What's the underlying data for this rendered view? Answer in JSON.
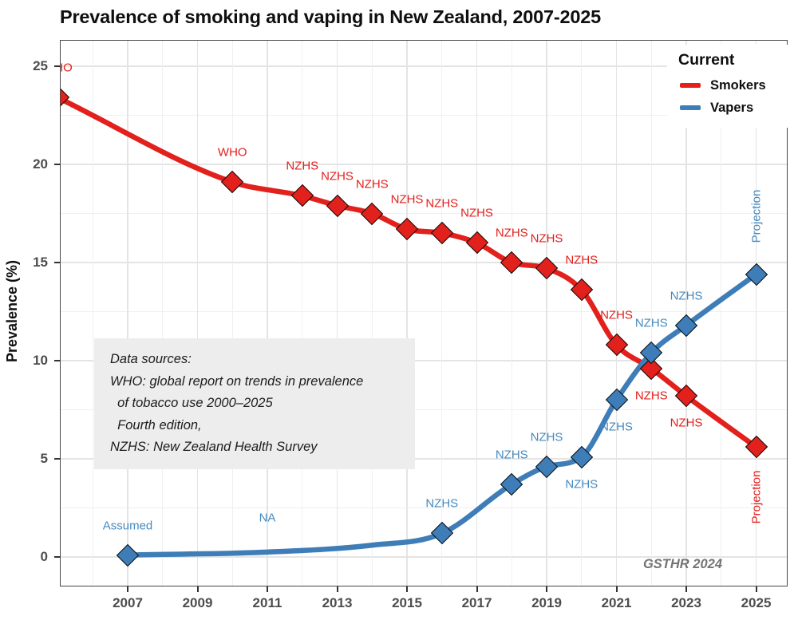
{
  "title": "Prevalence of smoking and vaping in New Zealand, 2007-2025",
  "watermark": "GSTHR 2024",
  "colors": {
    "smokers": "#E2201C",
    "smokers_label": "#E2201C",
    "vapers": "#3E7DB7",
    "vapers_label": "#4589BF",
    "grid_major": "#e4e4e4",
    "grid_minor": "#f0f0f0",
    "axis_text": "#4d4d4d",
    "panel_border": "#474747",
    "annotation_bg": "#ededed",
    "watermark_color": "#737373"
  },
  "y_axis": {
    "label": "Prevalence (%)",
    "ticks": [
      0,
      5,
      10,
      15,
      20,
      25
    ]
  },
  "x_axis": {
    "ticks": [
      2007,
      2009,
      2011,
      2013,
      2015,
      2017,
      2019,
      2021,
      2023,
      2025
    ]
  },
  "legend": {
    "title": "Current",
    "items": [
      {
        "label": "Smokers",
        "color": "#E2201C"
      },
      {
        "label": "Vapers",
        "color": "#3E7DB7"
      }
    ]
  },
  "sources_box": {
    "lines": [
      "Data sources:",
      "WHO: global report on trends in prevalence",
      "  of tobacco use 2000–2025",
      "  Fourth edition,",
      "NZHS: New Zealand Health Survey"
    ]
  },
  "chart_data": {
    "type": "line",
    "title": "Prevalence of smoking and vaping in New Zealand, 2007-2025",
    "ylabel": "Prevalence (%)",
    "ylim": [
      0,
      25
    ],
    "xlim": [
      2005,
      2026
    ],
    "grid": true,
    "legend_position": "top-right",
    "series": [
      {
        "name": "Smokers",
        "color": "#E2201C",
        "points": [
          {
            "year": 2005,
            "value": 23.4,
            "label": "WHO",
            "label_pos": "above"
          },
          {
            "year": 2010,
            "value": 19.1,
            "label": "WHO",
            "label_pos": "above"
          },
          {
            "year": 2012,
            "value": 18.4,
            "label": "NZHS",
            "label_pos": "above"
          },
          {
            "year": 2013,
            "value": 17.9,
            "label": "NZHS",
            "label_pos": "above"
          },
          {
            "year": 2014,
            "value": 17.5,
            "label": "NZHS",
            "label_pos": "above"
          },
          {
            "year": 2015,
            "value": 16.7,
            "label": "NZHS",
            "label_pos": "above"
          },
          {
            "year": 2016,
            "value": 16.5,
            "label": "NZHS",
            "label_pos": "above"
          },
          {
            "year": 2017,
            "value": 16.0,
            "label": "NZHS",
            "label_pos": "above"
          },
          {
            "year": 2018,
            "value": 15.0,
            "label": "NZHS",
            "label_pos": "above"
          },
          {
            "year": 2019,
            "value": 14.7,
            "label": "NZHS",
            "label_pos": "above"
          },
          {
            "year": 2020,
            "value": 13.6,
            "label": "NZHS",
            "label_pos": "above"
          },
          {
            "year": 2021,
            "value": 10.8,
            "label": "NZHS",
            "label_pos": "above"
          },
          {
            "year": 2022,
            "value": 9.6,
            "label": "NZHS",
            "label_pos": "below"
          },
          {
            "year": 2023,
            "value": 8.2,
            "label": "NZHS",
            "label_pos": "below"
          },
          {
            "year": 2025,
            "value": 5.6,
            "label": "Projection",
            "label_pos": "below-rotated"
          }
        ]
      },
      {
        "name": "Vapers",
        "color": "#3E7DB7",
        "points": [
          {
            "year": 2007,
            "value": 0.1,
            "label": "Assumed",
            "label_pos": "above"
          },
          {
            "year": 2011,
            "value": 0.25,
            "curve_anchor_only": true
          },
          {
            "year": 2014,
            "value": 0.6,
            "curve_anchor_only": true
          },
          {
            "year": 2016,
            "value": 1.2,
            "label": "NZHS",
            "label_pos": "above"
          },
          {
            "year": 2018,
            "value": 3.7,
            "label": "NZHS",
            "label_pos": "above"
          },
          {
            "year": 2019,
            "value": 4.6,
            "label": "NZHS",
            "label_pos": "above"
          },
          {
            "year": 2020,
            "value": 5.1,
            "label": "NZHS",
            "label_pos": "below"
          },
          {
            "year": 2021,
            "value": 8.0,
            "label": "NZHS",
            "label_pos": "below"
          },
          {
            "year": 2022,
            "value": 10.4,
            "label": "NZHS",
            "label_pos": "above"
          },
          {
            "year": 2023,
            "value": 11.8,
            "label": "NZHS",
            "label_pos": "above"
          },
          {
            "year": 2025,
            "value": 14.4,
            "label": "Projection",
            "label_pos": "above-rotated"
          }
        ],
        "extra_labels": [
          {
            "year": 2011,
            "value": 2.0,
            "text": "NA"
          }
        ]
      }
    ]
  }
}
